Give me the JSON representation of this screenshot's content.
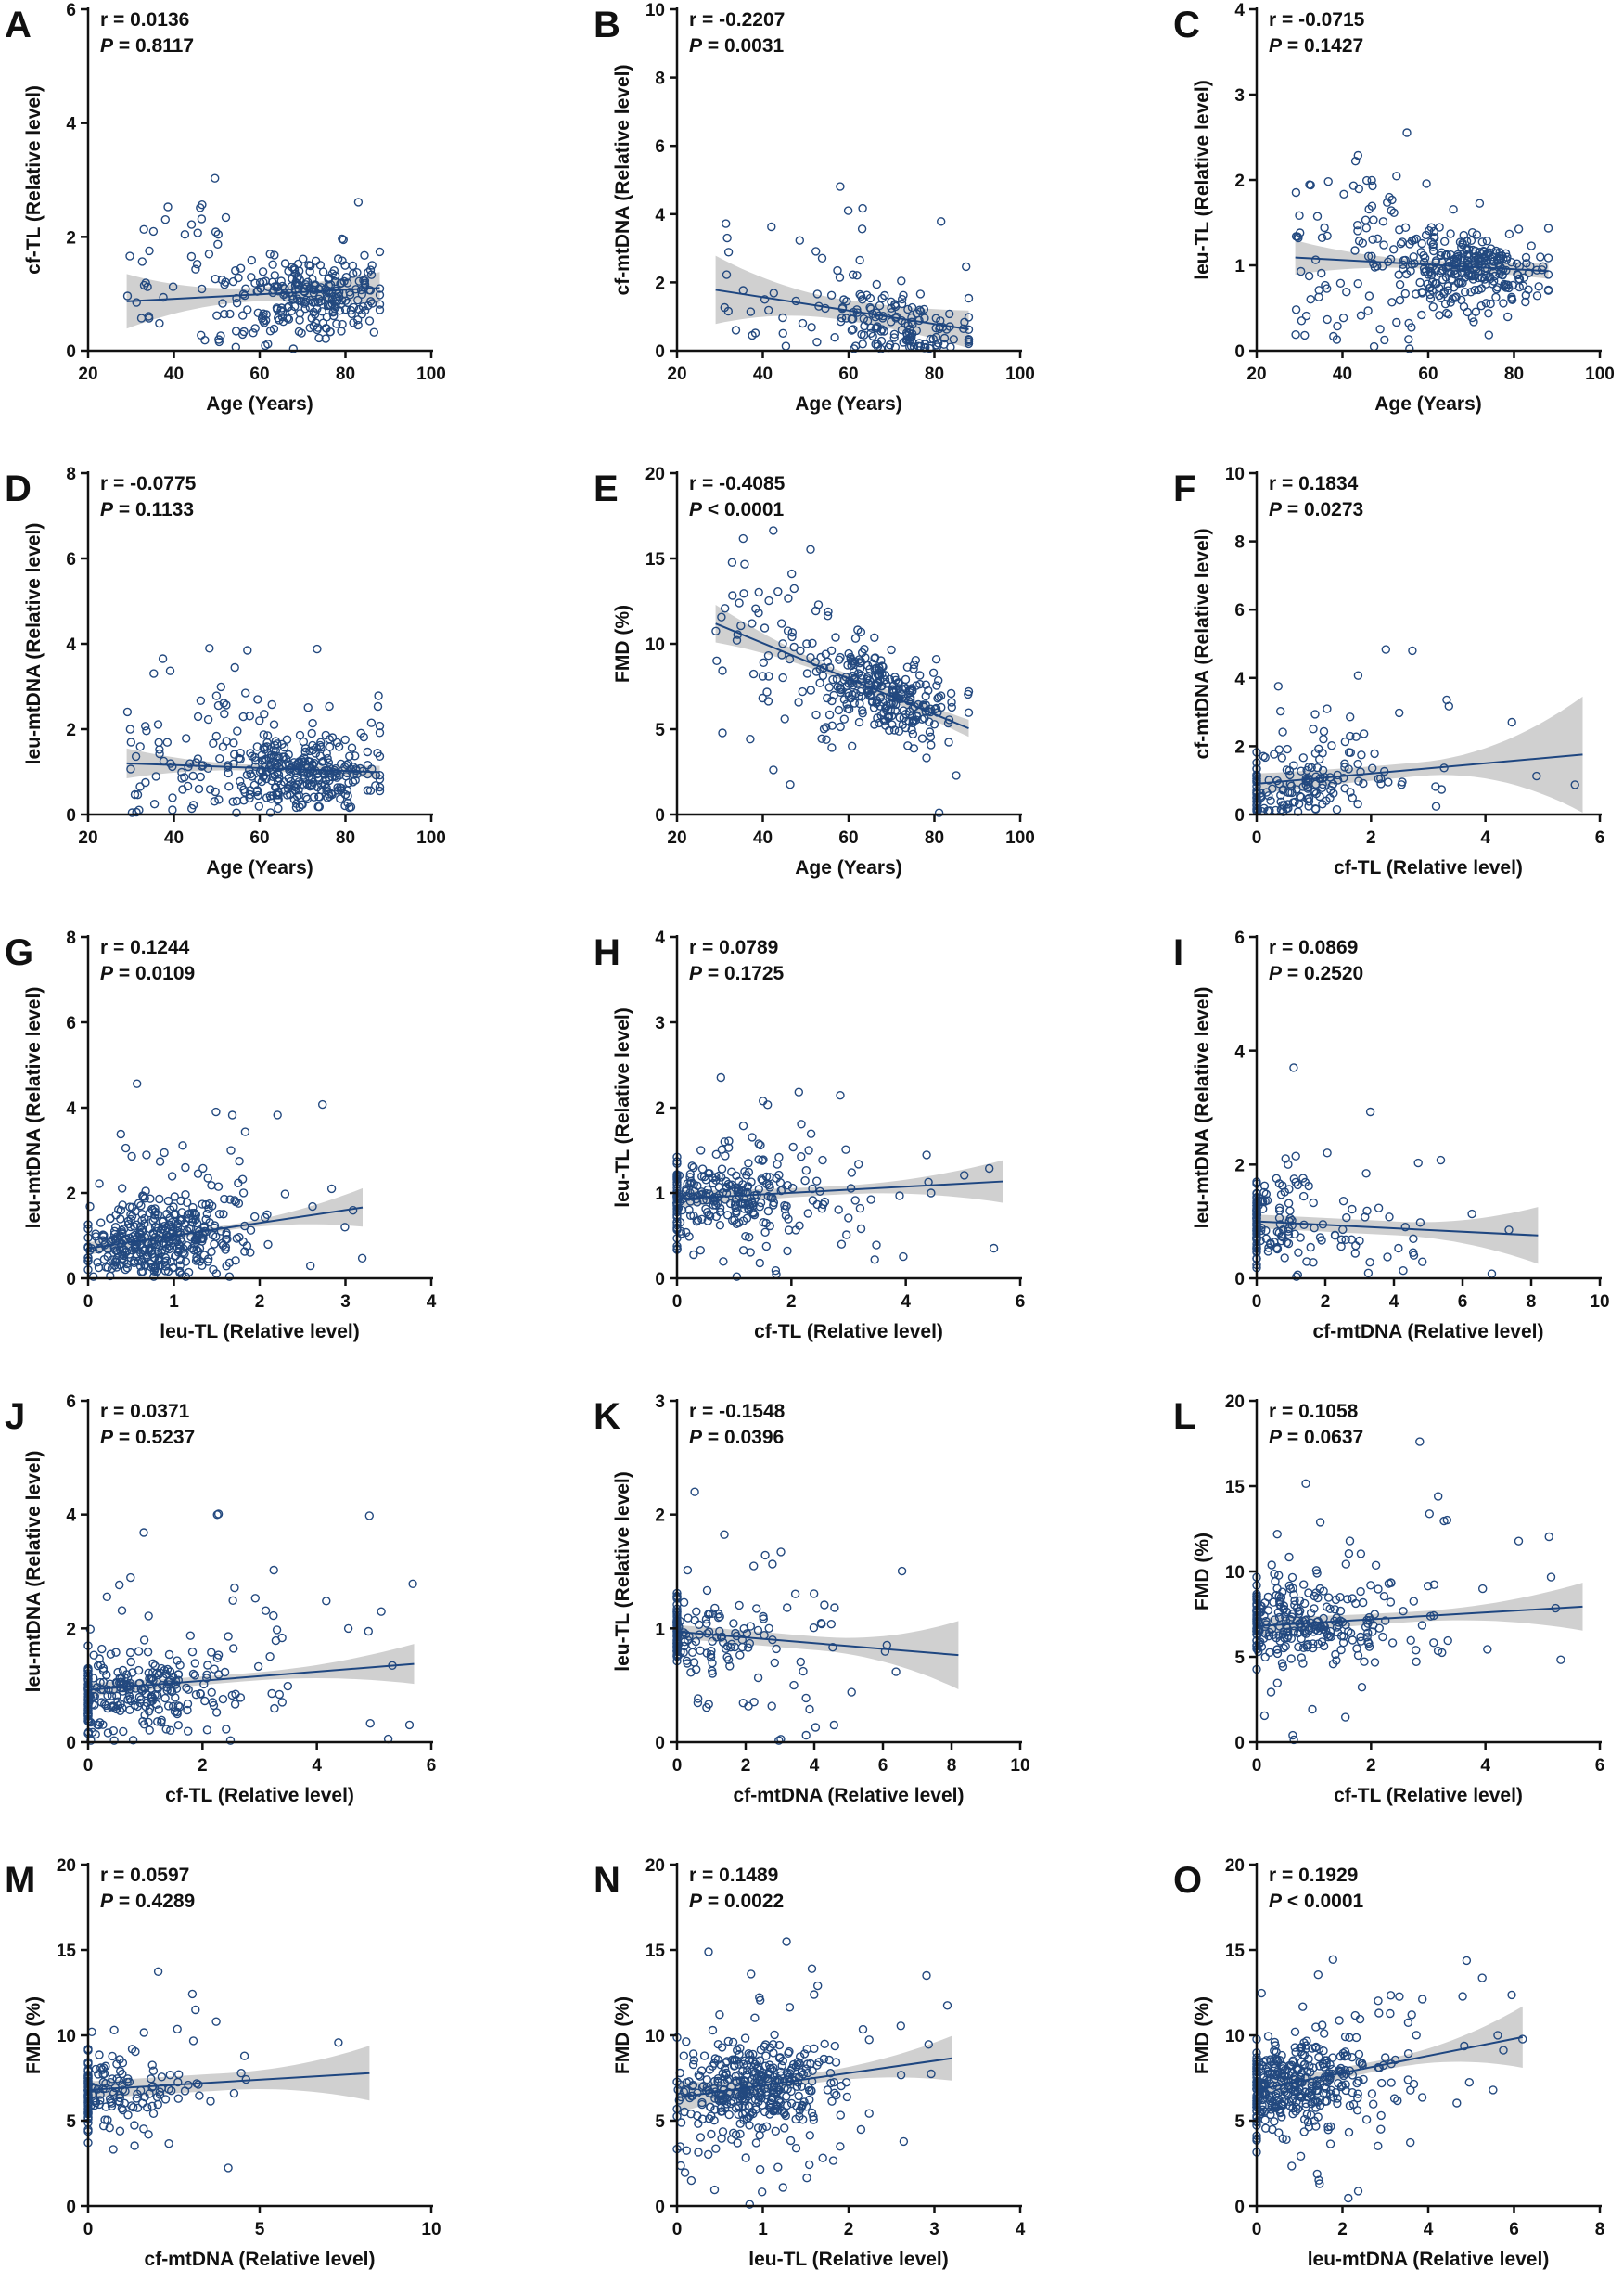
{
  "chart_data": [
    {
      "id": "A",
      "type": "scatter",
      "title": "A",
      "r_text": "r = 0.0136",
      "p_label": "P",
      "p_text": " = 0.8117",
      "xlabel": "Age (Years)",
      "ylabel": "cf-TL (Relative level)",
      "xlim": [
        20,
        100
      ],
      "ylim": [
        0,
        6
      ],
      "xticks": [
        20,
        40,
        60,
        80,
        100
      ],
      "yticks": [
        0,
        2,
        4,
        6
      ],
      "n_points": 300,
      "x_range": [
        29,
        88
      ],
      "fit": {
        "slope": 0.004,
        "intercept": 0.75
      },
      "ci_halfwidth": [
        0.48,
        0.12,
        0.28
      ],
      "cluster": [
        72,
        0.8
      ]
    },
    {
      "id": "B",
      "type": "scatter",
      "title": "B",
      "r_text": "r = -0.2207",
      "p_label": "P",
      "p_text": " = 0.0031",
      "xlabel": "Age (Years)",
      "ylabel": "cf-mtDNA (Relative level)",
      "xlim": [
        20,
        100
      ],
      "ylim": [
        0,
        10
      ],
      "xticks": [
        20,
        40,
        60,
        80,
        100
      ],
      "yticks": [
        0,
        2,
        4,
        6,
        8,
        10
      ],
      "n_points": 180,
      "x_range": [
        29,
        88
      ],
      "fit": {
        "slope": -0.0196,
        "intercept": 2.35
      },
      "ci_halfwidth": [
        1.0,
        0.3,
        0.55
      ],
      "cluster": [
        72,
        0.2
      ]
    },
    {
      "id": "C",
      "type": "scatter",
      "title": "C",
      "r_text": "r = -0.0715",
      "p_label": "P",
      "p_text": " = 0.1427",
      "xlabel": "Age (Years)",
      "ylabel": "leu-TL (Relative level)",
      "xlim": [
        20,
        100
      ],
      "ylim": [
        0,
        4
      ],
      "xticks": [
        20,
        40,
        60,
        80,
        100
      ],
      "yticks": [
        0,
        1,
        2,
        3,
        4
      ],
      "n_points": 380,
      "x_range": [
        29,
        88
      ],
      "fit": {
        "slope": -0.0027,
        "intercept": 1.17
      },
      "ci_halfwidth": [
        0.2,
        0.05,
        0.09
      ],
      "cluster": [
        70,
        0.9
      ]
    },
    {
      "id": "D",
      "type": "scatter",
      "title": "D",
      "r_text": "r = -0.0775",
      "p_label": "P",
      "p_text": " = 0.1133",
      "xlabel": "Age (Years)",
      "ylabel": "leu-mtDNA (Relative level)",
      "xlim": [
        20,
        100
      ],
      "ylim": [
        0,
        8
      ],
      "xticks": [
        20,
        40,
        60,
        80,
        100
      ],
      "yticks": [
        0,
        2,
        4,
        6,
        8
      ],
      "n_points": 380,
      "x_range": [
        29,
        88
      ],
      "fit": {
        "slope": -0.0035,
        "intercept": 1.3
      },
      "ci_halfwidth": [
        0.35,
        0.07,
        0.15
      ],
      "cluster": [
        70,
        0.8
      ]
    },
    {
      "id": "E",
      "type": "scatter",
      "title": "E",
      "r_text": "r = -0.4085",
      "p_label": "P",
      "p_text": " < 0.0001",
      "xlabel": "Age (Years)",
      "ylabel": "FMD (%)",
      "xlim": [
        20,
        100
      ],
      "ylim": [
        0,
        20
      ],
      "xticks": [
        20,
        40,
        60,
        80,
        100
      ],
      "yticks": [
        0,
        5,
        10,
        15,
        20
      ],
      "n_points": 340,
      "x_range": [
        29,
        88
      ],
      "fit": {
        "slope": -0.104,
        "intercept": 14.2
      },
      "ci_halfwidth": [
        1.1,
        0.25,
        0.5
      ],
      "cluster": [
        68,
        7.0
      ]
    },
    {
      "id": "F",
      "type": "scatter",
      "title": "F",
      "r_text": "r = 0.1834",
      "p_label": "P",
      "p_text": " = 0.0273",
      "xlabel": "cf-TL (Relative level)",
      "ylabel": "cf-mtDNA (Relative level)",
      "xlim": [
        0,
        6
      ],
      "ylim": [
        0,
        10
      ],
      "xticks": [
        0,
        2,
        4,
        6
      ],
      "yticks": [
        0,
        2,
        4,
        6,
        8,
        10
      ],
      "n_points": 180,
      "x_range": [
        0,
        5.7
      ],
      "fit": {
        "slope": 0.15,
        "intercept": 0.9
      },
      "ci_halfwidth": [
        0.3,
        0.2,
        1.7
      ],
      "cluster": [
        0.6,
        0.2
      ]
    },
    {
      "id": "G",
      "type": "scatter",
      "title": "G",
      "r_text": "r = 0.1244",
      "p_label": "P",
      "p_text": " = 0.0109",
      "xlabel": "leu-TL (Relative level)",
      "ylabel": "leu-mtDNA (Relative level)",
      "xlim": [
        0,
        4
      ],
      "ylim": [
        0,
        8
      ],
      "xticks": [
        0,
        1,
        2,
        3,
        4
      ],
      "yticks": [
        0,
        2,
        4,
        6,
        8
      ],
      "n_points": 420,
      "x_range": [
        0,
        3.2
      ],
      "fit": {
        "slope": 0.3,
        "intercept": 0.7
      },
      "ci_halfwidth": [
        0.15,
        0.06,
        0.45
      ],
      "cluster": [
        0.8,
        0.6
      ]
    },
    {
      "id": "H",
      "type": "scatter",
      "title": "H",
      "r_text": "r = 0.0789",
      "p_label": "P",
      "p_text": " = 0.1725",
      "xlabel": "cf-TL (Relative level)",
      "ylabel": "leu-TL (Relative level)",
      "xlim": [
        0,
        6
      ],
      "ylim": [
        0,
        4
      ],
      "xticks": [
        0,
        2,
        4,
        6
      ],
      "yticks": [
        0,
        1,
        2,
        3,
        4
      ],
      "n_points": 300,
      "x_range": [
        0,
        5.7
      ],
      "fit": {
        "slope": 0.036,
        "intercept": 0.93
      },
      "ci_halfwidth": [
        0.1,
        0.05,
        0.25
      ],
      "cluster": [
        0.6,
        0.9
      ]
    },
    {
      "id": "I",
      "type": "scatter",
      "title": "I",
      "r_text": "r = 0.0869",
      "p_label": "P",
      "p_text": " = 0.2520",
      "xlabel": "cf-mtDNA (Relative level)",
      "ylabel": "leu-mtDNA (Relative level)",
      "xlim": [
        0,
        10
      ],
      "ylim": [
        0,
        6
      ],
      "xticks": [
        0,
        2,
        4,
        6,
        8,
        10
      ],
      "yticks": [
        0,
        2,
        4,
        6
      ],
      "n_points": 180,
      "x_range": [
        0,
        8.2
      ],
      "fit": {
        "slope": -0.03,
        "intercept": 1.0
      },
      "ci_halfwidth": [
        0.12,
        0.12,
        0.5
      ],
      "cluster": [
        0.2,
        0.9
      ]
    },
    {
      "id": "J",
      "type": "scatter",
      "title": "J",
      "r_text": "r = 0.0371",
      "p_label": "P",
      "p_text": " = 0.5237",
      "xlabel": "cf-TL (Relative level)",
      "ylabel": "leu-mtDNA (Relative level)",
      "xlim": [
        0,
        6
      ],
      "ylim": [
        0,
        6
      ],
      "xticks": [
        0,
        2,
        4,
        6
      ],
      "yticks": [
        0,
        2,
        4,
        6
      ],
      "n_points": 300,
      "x_range": [
        0,
        5.7
      ],
      "fit": {
        "slope": 0.08,
        "intercept": 0.92
      },
      "ci_halfwidth": [
        0.12,
        0.07,
        0.35
      ],
      "cluster": [
        0.6,
        0.7
      ]
    },
    {
      "id": "K",
      "type": "scatter",
      "title": "K",
      "r_text": "r = -0.1548",
      "p_label": "P",
      "p_text": " = 0.0396",
      "xlabel": "cf-mtDNA (Relative level)",
      "ylabel": "leu-TL (Relative level)",
      "xlim": [
        0,
        10
      ],
      "ylim": [
        0,
        3
      ],
      "xticks": [
        0,
        2,
        4,
        6,
        8,
        10
      ],
      "yticks": [
        0,
        1,
        2,
        3
      ],
      "n_points": 180,
      "x_range": [
        0,
        8.2
      ],
      "fit": {
        "slope": -0.025,
        "intercept": 0.97
      },
      "ci_halfwidth": [
        0.06,
        0.06,
        0.3
      ],
      "cluster": [
        0.2,
        0.9
      ]
    },
    {
      "id": "L",
      "type": "scatter",
      "title": "L",
      "r_text": "r = 0.1058",
      "p_label": "P",
      "p_text": " = 0.0637",
      "xlabel": "cf-TL (Relative level)",
      "ylabel": "FMD (%)",
      "xlim": [
        0,
        6
      ],
      "ylim": [
        0,
        20
      ],
      "xticks": [
        0,
        2,
        4,
        6
      ],
      "yticks": [
        0,
        5,
        10,
        15,
        20
      ],
      "n_points": 300,
      "x_range": [
        0,
        5.7
      ],
      "fit": {
        "slope": 0.2,
        "intercept": 6.8
      },
      "ci_halfwidth": [
        0.5,
        0.3,
        1.4
      ],
      "cluster": [
        0.6,
        7.0
      ]
    },
    {
      "id": "M",
      "type": "scatter",
      "title": "M",
      "r_text": "r = 0.0597",
      "p_label": "P",
      "p_text": " = 0.4289",
      "xlabel": "cf-mtDNA (Relative level)",
      "ylabel": "FMD (%)",
      "xlim": [
        0,
        10
      ],
      "ylim": [
        0,
        20
      ],
      "xticks": [
        0,
        5,
        10
      ],
      "yticks": [
        0,
        5,
        10,
        15,
        20
      ],
      "n_points": 180,
      "x_range": [
        0,
        8.2
      ],
      "fit": {
        "slope": 0.12,
        "intercept": 6.8
      },
      "ci_halfwidth": [
        0.5,
        0.5,
        1.6
      ],
      "cluster": [
        0.2,
        7.0
      ]
    },
    {
      "id": "N",
      "type": "scatter",
      "title": "N",
      "r_text": "r = 0.1489",
      "p_label": "P",
      "p_text": " = 0.0022",
      "xlabel": "leu-TL (Relative level)",
      "ylabel": "FMD (%)",
      "xlim": [
        0,
        4
      ],
      "ylim": [
        0,
        20
      ],
      "xticks": [
        0,
        1,
        2,
        3,
        4
      ],
      "yticks": [
        0,
        5,
        10,
        15,
        20
      ],
      "n_points": 420,
      "x_range": [
        0,
        3.2
      ],
      "fit": {
        "slope": 0.72,
        "intercept": 6.35
      },
      "ci_halfwidth": [
        0.9,
        0.3,
        1.3
      ],
      "cluster": [
        0.9,
        7.0
      ]
    },
    {
      "id": "O",
      "type": "scatter",
      "title": "O",
      "r_text": "r = 0.1929",
      "p_label": "P",
      "p_text": " < 0.0001",
      "xlabel": "leu-mtDNA (Relative level)",
      "ylabel": "FMD (%)",
      "xlim": [
        0,
        8
      ],
      "ylim": [
        0,
        20
      ],
      "xticks": [
        0,
        2,
        4,
        6,
        8
      ],
      "yticks": [
        0,
        5,
        10,
        15,
        20
      ],
      "n_points": 420,
      "x_range": [
        0,
        6.2
      ],
      "fit": {
        "slope": 0.5,
        "intercept": 6.8
      },
      "ci_halfwidth": [
        0.4,
        0.3,
        1.8
      ],
      "cluster": [
        0.8,
        7.0
      ]
    }
  ]
}
